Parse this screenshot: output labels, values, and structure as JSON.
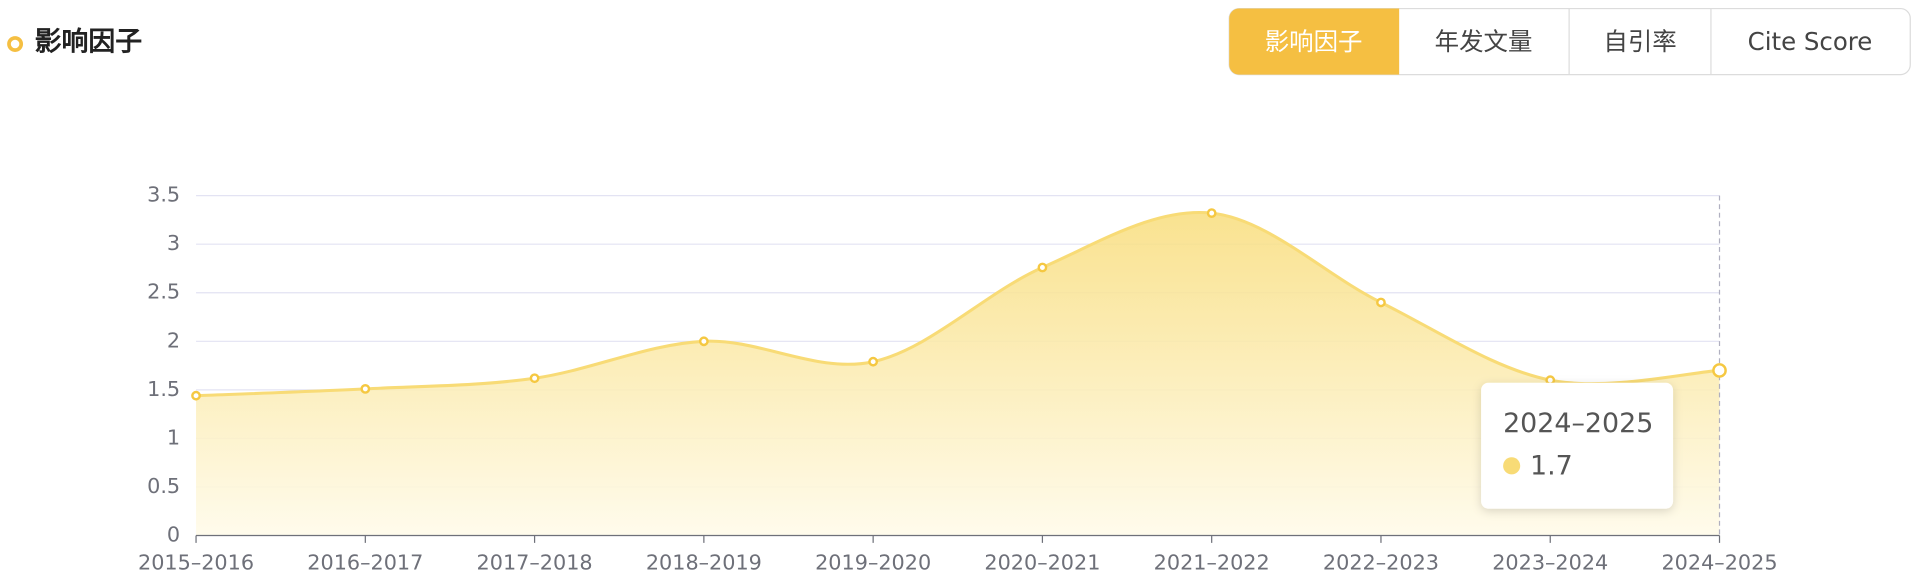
{
  "chart_data": {
    "type": "area",
    "title": "影响因子",
    "categories": [
      "2015–2016",
      "2016–2017",
      "2017–2018",
      "2018–2019",
      "2019–2020",
      "2020–2021",
      "2021–2022",
      "2022–2023",
      "2023–2024",
      "2024–2025"
    ],
    "values": [
      1.44,
      1.51,
      1.62,
      2.0,
      1.79,
      2.76,
      3.32,
      2.4,
      1.6,
      1.7
    ],
    "color": "#f8db76",
    "marker_color": "#f5c842",
    "ylim": [
      0,
      3.5
    ],
    "yticks": [
      0,
      0.5,
      1,
      1.5,
      2,
      2.5,
      3,
      3.5
    ],
    "grid": true
  },
  "tabs": [
    "影响因子",
    "年发文量",
    "自引率",
    "Cite Score"
  ]
}
